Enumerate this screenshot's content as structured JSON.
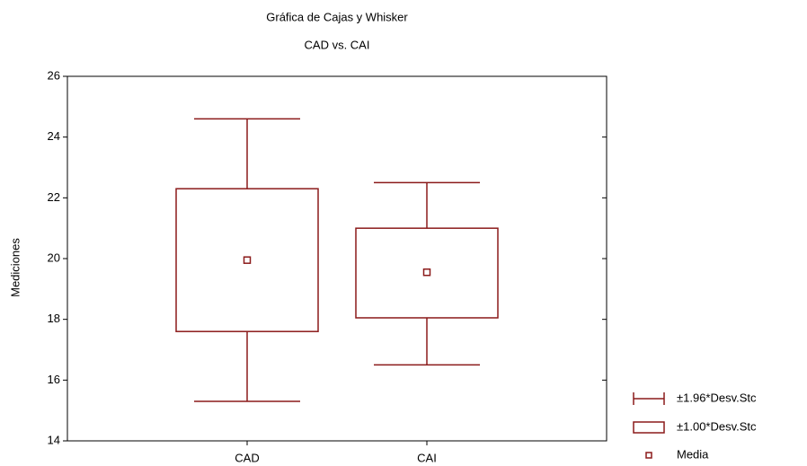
{
  "chart_data": {
    "type": "box",
    "title": "Gráfica de Cajas y Whisker",
    "subtitle": "CAD vs. CAI",
    "y_label": "Mediciones",
    "categories": [
      "CAD",
      "CAI"
    ],
    "whisker_high": [
      24.6,
      22.5
    ],
    "box_high": [
      22.3,
      21.0
    ],
    "mean": [
      19.95,
      19.55
    ],
    "box_low": [
      17.6,
      18.05
    ],
    "whisker_low": [
      15.3,
      16.5
    ],
    "legend": [
      "±1.96*Desv.Stc",
      "±1.00*Desv.Stc",
      "Media"
    ],
    "color": "#8b1a1a",
    "ylim": [
      14,
      26
    ],
    "yticks": [
      14,
      16,
      18,
      20,
      22,
      24,
      26
    ]
  }
}
